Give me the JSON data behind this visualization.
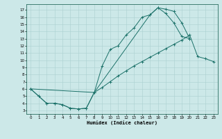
{
  "xlabel": "Humidex (Indice chaleur)",
  "xlim": [
    -0.5,
    23.5
  ],
  "ylim": [
    2.5,
    17.8
  ],
  "yticks": [
    3,
    4,
    5,
    6,
    7,
    8,
    9,
    10,
    11,
    12,
    13,
    14,
    15,
    16,
    17
  ],
  "xticks": [
    0,
    1,
    2,
    3,
    4,
    5,
    6,
    7,
    8,
    9,
    10,
    11,
    12,
    13,
    14,
    15,
    16,
    17,
    18,
    19,
    20,
    21,
    22,
    23
  ],
  "bg_color": "#cce8e8",
  "grid_color": "#aad0d0",
  "line_color": "#1a7068",
  "c1x": [
    0,
    1,
    2,
    3,
    4,
    5,
    6,
    7,
    8,
    9,
    10,
    11,
    12,
    13,
    14,
    15,
    16,
    17,
    18,
    19,
    20
  ],
  "c1y": [
    6.0,
    5.0,
    4.0,
    4.0,
    3.8,
    3.3,
    3.2,
    3.3,
    5.5,
    9.2,
    11.5,
    12.0,
    13.5,
    14.5,
    16.0,
    16.3,
    17.3,
    17.1,
    16.8,
    15.2,
    13.0
  ],
  "c2x": [
    0,
    8,
    15,
    16,
    17,
    18,
    19,
    20
  ],
  "c2y": [
    6.0,
    5.5,
    16.3,
    17.3,
    16.5,
    15.2,
    13.3,
    13.0
  ],
  "c3x": [
    0,
    1,
    2,
    3,
    4,
    5,
    6,
    7,
    8,
    9,
    10,
    11,
    12,
    13,
    14,
    15,
    16,
    17,
    18,
    19,
    20,
    21,
    22,
    23
  ],
  "c3y": [
    6.0,
    5.0,
    4.0,
    4.0,
    3.8,
    3.3,
    3.2,
    3.3,
    5.5,
    6.2,
    7.0,
    7.8,
    8.5,
    9.2,
    9.8,
    10.4,
    11.0,
    11.6,
    12.2,
    12.8,
    13.5,
    10.5,
    10.2,
    9.8
  ]
}
